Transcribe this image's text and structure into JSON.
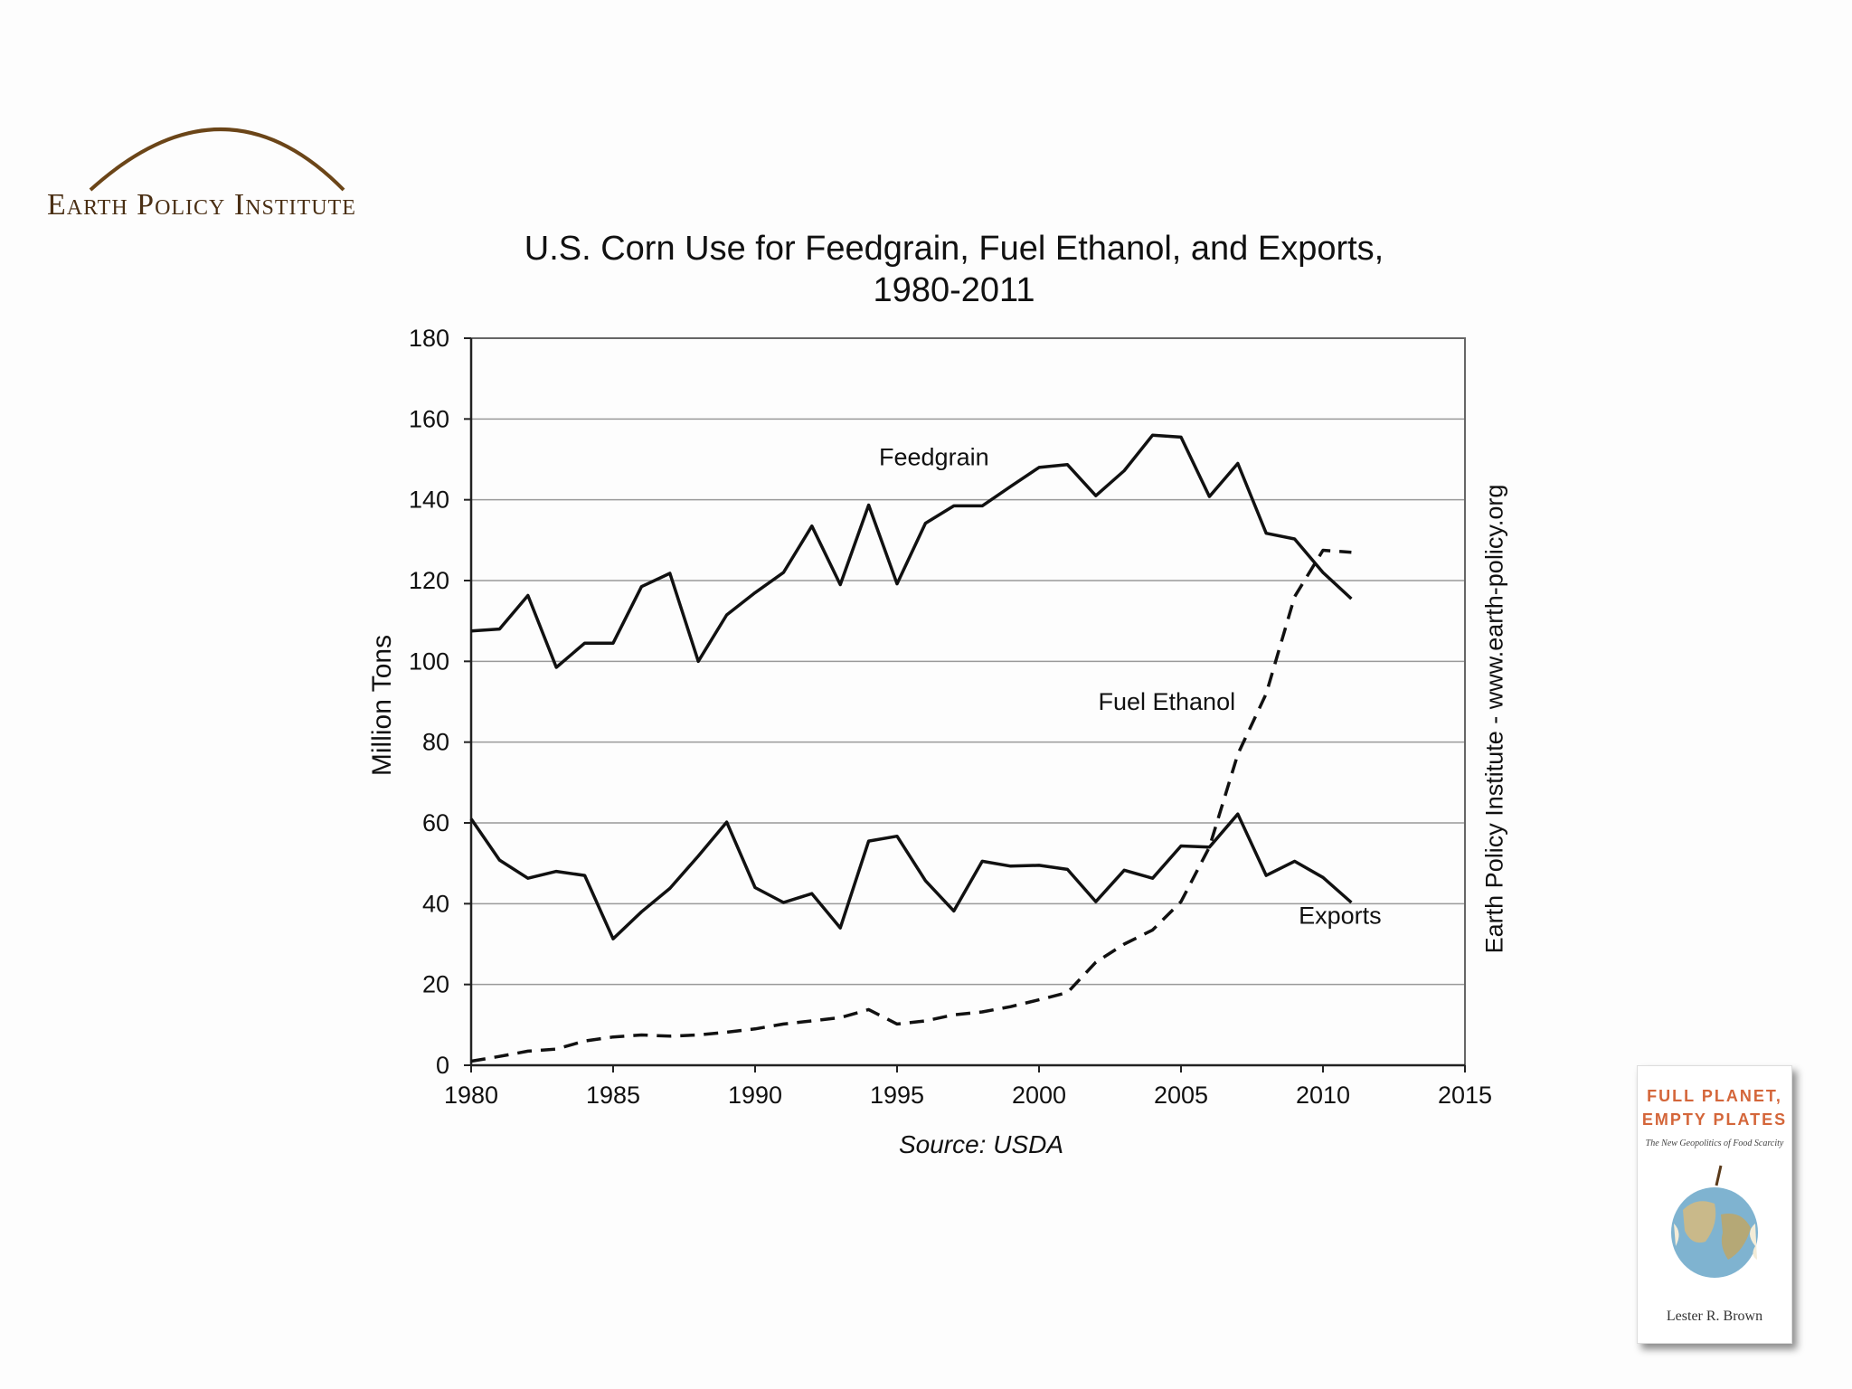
{
  "logo": {
    "text": "Earth Policy Institute",
    "arc_color": "#6b4518"
  },
  "side_caption": "Earth Policy Institute - www.earth-policy.org",
  "source_note": "Source: USDA",
  "book": {
    "title_line1": "FULL PLANET,",
    "title_line2": "EMPTY PLATES",
    "subtitle": "The New Geopolitics of Food Scarcity",
    "author": "Lester R. Brown"
  },
  "chart_data": {
    "type": "line",
    "title_line1": "U.S. Corn Use for Feedgrain, Fuel Ethanol, and Exports,",
    "title_line2": "1980-2011",
    "xlabel": "",
    "ylabel": "Million Tons",
    "xlim": [
      1980,
      2015
    ],
    "ylim": [
      0,
      180
    ],
    "xticks": [
      1980,
      1985,
      1990,
      1995,
      2000,
      2005,
      2010,
      2015
    ],
    "yticks": [
      0,
      20,
      40,
      60,
      80,
      100,
      120,
      140,
      160,
      180
    ],
    "grid": "horizontal",
    "series": [
      {
        "name": "Feedgrain",
        "style": "solid",
        "x": [
          1980,
          1981,
          1982,
          1983,
          1984,
          1985,
          1986,
          1987,
          1988,
          1989,
          1990,
          1991,
          1992,
          1993,
          1994,
          1995,
          1996,
          1997,
          1998,
          1999,
          2000,
          2001,
          2002,
          2003,
          2004,
          2005,
          2006,
          2007,
          2008,
          2009,
          2010,
          2011
        ],
        "values": [
          107.5,
          108,
          116.3,
          98.5,
          104.5,
          104.5,
          118.5,
          121.8,
          100,
          111.5,
          117,
          122,
          133.5,
          119,
          138.7,
          119.2,
          134.2,
          138.5,
          138.5,
          143.3,
          148,
          148.7,
          141,
          147.2,
          156,
          155.5,
          140.8,
          149,
          131.7,
          130.3,
          122,
          115.5
        ]
      },
      {
        "name": "Fuel Ethanol",
        "style": "dashed",
        "x": [
          1980,
          1981,
          1982,
          1983,
          1984,
          1985,
          1986,
          1987,
          1988,
          1989,
          1990,
          1991,
          1992,
          1993,
          1994,
          1995,
          1996,
          1997,
          1998,
          1999,
          2000,
          2001,
          2002,
          2003,
          2004,
          2005,
          2006,
          2007,
          2008,
          2009,
          2010,
          2011
        ],
        "values": [
          1,
          2.2,
          3.5,
          4,
          6,
          7,
          7.5,
          7.2,
          7.5,
          8.2,
          9,
          10.2,
          11,
          11.8,
          13.8,
          10.2,
          11,
          12.5,
          13.2,
          14.5,
          16.2,
          18,
          25.5,
          30,
          33.5,
          40.5,
          54,
          77,
          92,
          116,
          127.5,
          127
        ]
      },
      {
        "name": "Exports",
        "style": "solid",
        "x": [
          1980,
          1981,
          1982,
          1983,
          1984,
          1985,
          1986,
          1987,
          1988,
          1989,
          1990,
          1991,
          1992,
          1993,
          1994,
          1995,
          1996,
          1997,
          1998,
          1999,
          2000,
          2001,
          2002,
          2003,
          2004,
          2005,
          2006,
          2007,
          2008,
          2009,
          2010,
          2011
        ],
        "values": [
          61,
          50.8,
          46.3,
          48,
          47,
          31.3,
          38,
          43.8,
          51.8,
          60.2,
          44,
          40.3,
          42.5,
          34,
          55.5,
          56.7,
          45.7,
          38.2,
          50.5,
          49.3,
          49.5,
          48.5,
          40.5,
          48.3,
          46.3,
          54.3,
          54,
          62.2,
          47,
          50.5,
          46.5,
          40.3
        ]
      }
    ],
    "annotations": [
      {
        "text": "Feedgrain",
        "x": 1996.3,
        "y": 148.5
      },
      {
        "text": "Fuel Ethanol",
        "x": 2004.5,
        "y": 88
      },
      {
        "text": "Exports",
        "x": 2010.6,
        "y": 35
      }
    ],
    "colors": {
      "line": "#111111",
      "grid": "#9a9a9a",
      "axis": "#666666"
    }
  }
}
